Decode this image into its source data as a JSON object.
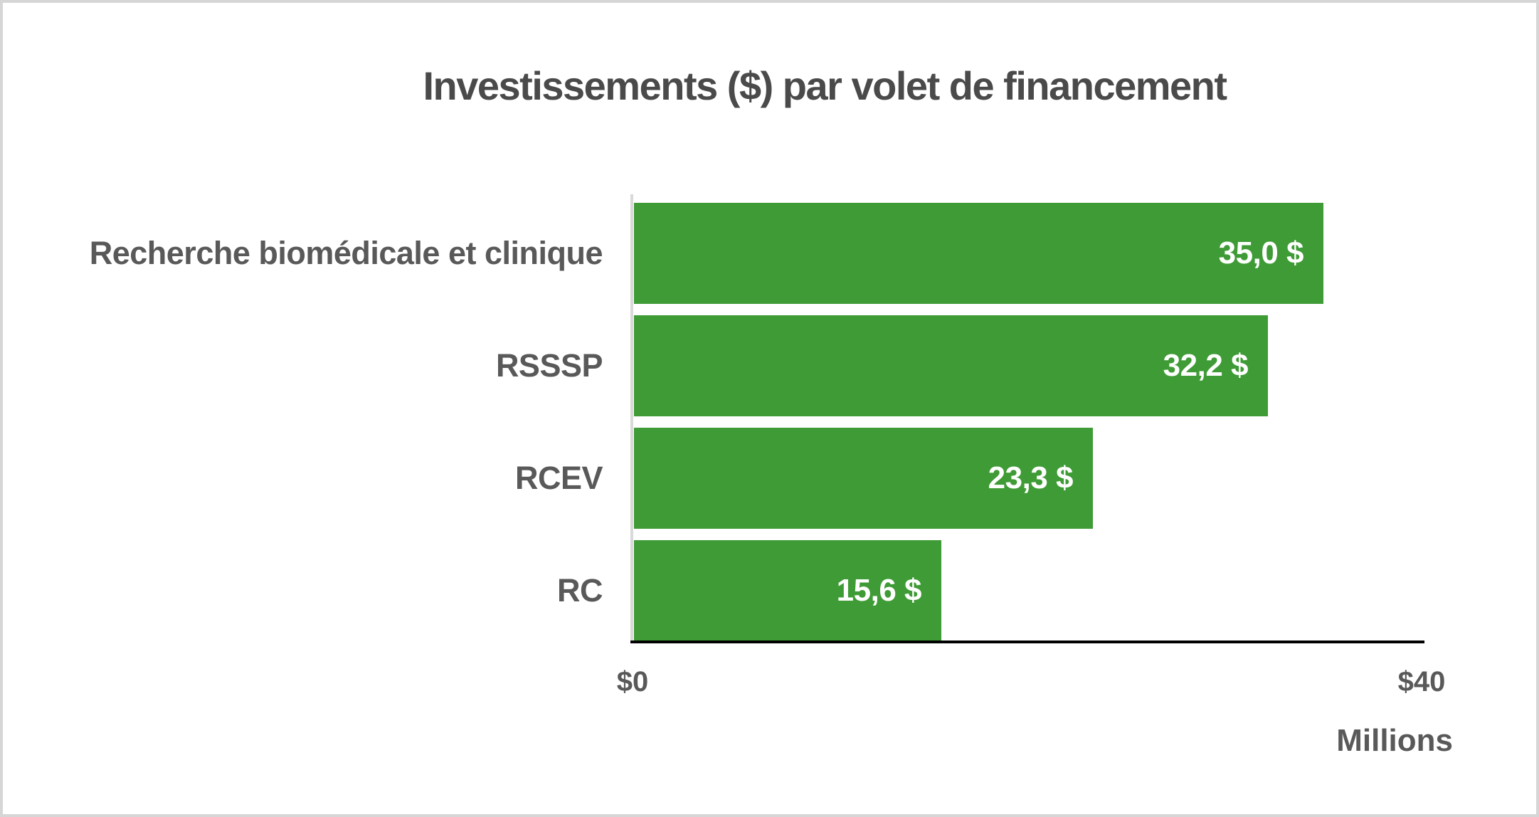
{
  "chart_data": {
    "type": "bar",
    "orientation": "horizontal",
    "title": "Investissements ($) par volet de financement",
    "categories": [
      "Recherche biomédicale et clinique",
      "RSSSP",
      "RCEV",
      "RC"
    ],
    "values": [
      35.0,
      32.2,
      23.3,
      15.6
    ],
    "value_labels": [
      "35,0 $",
      "32,2 $",
      "23,3 $",
      "15,6 $"
    ],
    "xlim": [
      0,
      40
    ],
    "x_ticks": [
      {
        "value": 0,
        "label": "$0"
      },
      {
        "value": 40,
        "label": "$40"
      }
    ],
    "axis_unit_label": "Millions",
    "grid": false,
    "legend": "none",
    "colors": {
      "bar_fill": "#3E9B35",
      "value_label_text": "#FFFFFF",
      "category_label_text": "#595959",
      "title_text": "#4A4A4A",
      "tick_label_text": "#595959",
      "x_axis_line": "#000000",
      "y_axis_line": "#D9D9D9",
      "background": "#FFFFFF",
      "frame_border": "#D6D6D6"
    }
  }
}
